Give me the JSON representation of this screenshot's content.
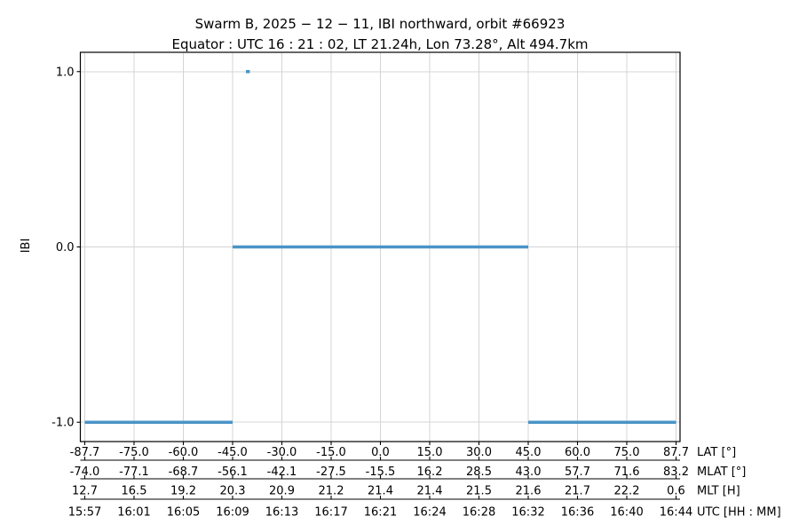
{
  "chart_data": {
    "type": "line",
    "title": "Swarm B,  2025 − 12 − 11,  IBI northward,  orbit #66923",
    "subtitle": "Equator :  UTC 16 : 21 : 02,  LT 21.24h,  Lon 73.28°,  Alt 494.7km",
    "ylabel": "IBI",
    "ylim": [
      -1.11,
      1.11
    ],
    "grid": true,
    "grid_color": "#d4d4d4",
    "yticks": [
      {
        "value": 1.0,
        "label": "1.0"
      },
      {
        "value": 0.0,
        "label": "0.0"
      },
      {
        "value": -1.0,
        "label": "-1.0"
      }
    ],
    "x_axis_rows": [
      {
        "label": "LAT [°]",
        "ticks": [
          "-87.7",
          "-75.0",
          "-60.0",
          "-45.0",
          "-30.0",
          "-15.0",
          "0.0",
          "15.0",
          "30.0",
          "45.0",
          "60.0",
          "75.0",
          "87.7"
        ]
      },
      {
        "label": "MLAT [°]",
        "ticks": [
          "-74.0",
          "-77.1",
          "-68.7",
          "-56.1",
          "-42.1",
          "-27.5",
          "-15.5",
          "16.2",
          "28.5",
          "43.0",
          "57.7",
          "71.6",
          "83.2"
        ]
      },
      {
        "label": "MLT [H]",
        "ticks": [
          "12.7",
          "16.5",
          "19.2",
          "20.3",
          "20.9",
          "21.2",
          "21.4",
          "21.4",
          "21.5",
          "21.6",
          "21.7",
          "22.2",
          "0.6"
        ]
      },
      {
        "label": "UTC [HH : MM]",
        "ticks": [
          "15:57",
          "16:01",
          "16:05",
          "16:09",
          "16:13",
          "16:17",
          "16:21",
          "16:24",
          "16:28",
          "16:32",
          "16:36",
          "16:40",
          "16:44"
        ]
      }
    ],
    "series": [
      {
        "name": "IBI",
        "color": "#4a94c7",
        "linewidth": 3.6,
        "segments": [
          {
            "y": -1.0,
            "x_from_tick": 0,
            "x_to_tick": 3
          },
          {
            "y": 0.0,
            "x_from_tick": 3,
            "x_to_tick": 9
          },
          {
            "y": -1.0,
            "x_from_tick": 9,
            "x_to_tick": 12
          }
        ],
        "points": [
          {
            "y": 1.0,
            "x_tick": 3.31
          }
        ]
      }
    ]
  }
}
